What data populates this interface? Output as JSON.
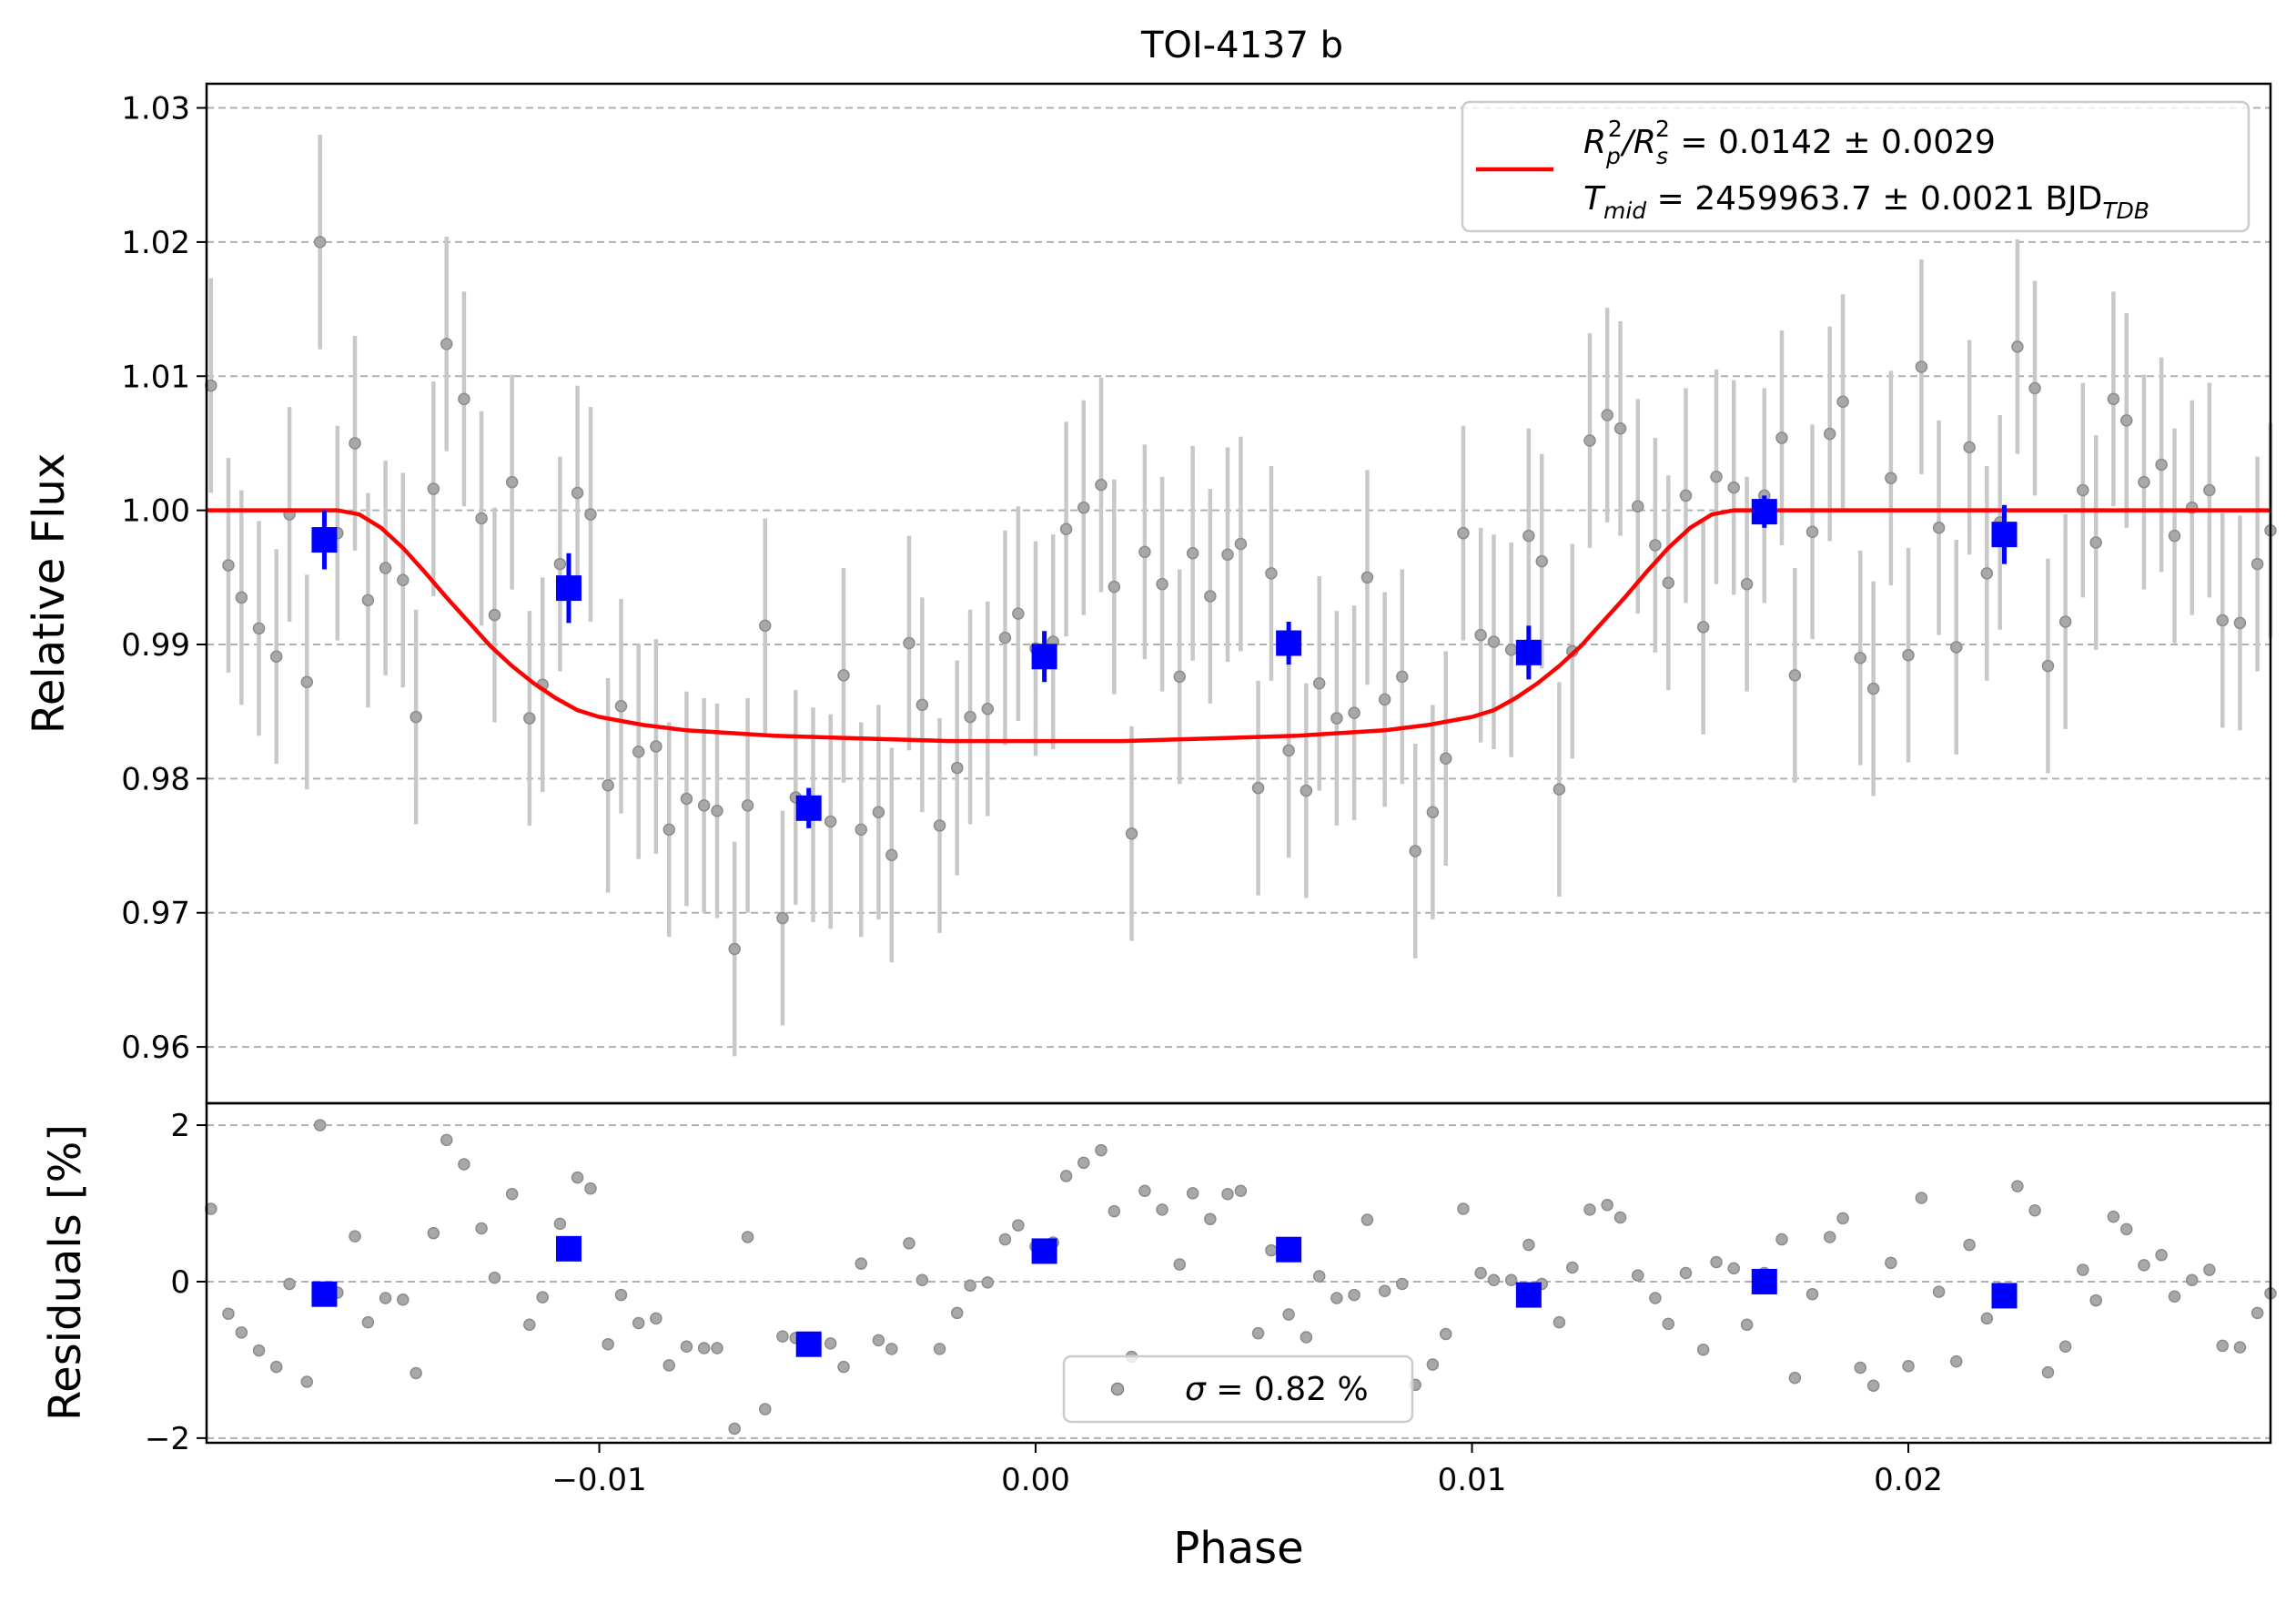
{
  "chart_data": [
    {
      "type": "scatter",
      "title": "TOI-4137 b",
      "xlabel": "",
      "ylabel": "Relative Flux",
      "xlim": [
        -0.019,
        0.0283
      ],
      "ylim": [
        0.9558,
        1.0318
      ],
      "grid": "horizontal-dashed",
      "legend_position": "top-right",
      "yticks": [
        "0.96",
        "0.97",
        "0.98",
        "0.99",
        "1.00",
        "1.01",
        "1.02",
        "1.03"
      ],
      "ytick_values": [
        0.96,
        0.97,
        0.98,
        0.99,
        1.0,
        1.01,
        1.02,
        1.03
      ],
      "legend": {
        "line1": {
          "p1": "R",
          "s1": "p",
          "e1": "2",
          "p2": "/R",
          "s2": "s",
          "e2": "2",
          "p3": " = 0.0142 ± 0.0029"
        },
        "line2": {
          "p1": "T",
          "s1": "mid",
          "p2": " = 2459963.7 ± 0.0021 BJD",
          "s2": "TDB"
        }
      },
      "colors": {
        "data": "#808080",
        "errorbar": "#c8c8c8",
        "binned": "#0000ff",
        "model": "#ff0000"
      },
      "series": [
        {
          "kind": "unbinned_data",
          "x": [
            -0.0189,
            -0.0185,
            -0.0182,
            -0.0178,
            -0.0174,
            -0.0171,
            -0.0167,
            -0.0164,
            -0.016,
            -0.0156,
            -0.0153,
            -0.0149,
            -0.0145,
            -0.0142,
            -0.0138,
            -0.0135,
            -0.0131,
            -0.0127,
            -0.0124,
            -0.012,
            -0.0116,
            -0.0113,
            -0.0109,
            -0.0105,
            -0.0102,
            -0.0098,
            -0.0095,
            -0.0091,
            -0.0087,
            -0.0084,
            -0.008,
            -0.0076,
            -0.0073,
            -0.0069,
            -0.0066,
            -0.0062,
            -0.0058,
            -0.0055,
            -0.0051,
            -0.0047,
            -0.0044,
            -0.004,
            -0.0036,
            -0.0033,
            -0.0029,
            -0.0026,
            -0.0022,
            -0.0018,
            -0.0015,
            -0.0011,
            -0.0007,
            -0.0004,
            0.0,
            0.0004,
            0.0007,
            0.0011,
            0.0015,
            0.0018,
            0.0022,
            0.0025,
            0.0029,
            0.0033,
            0.0036,
            0.004,
            0.0044,
            0.0047,
            0.0051,
            0.0054,
            0.0058,
            0.0062,
            0.0065,
            0.0069,
            0.0073,
            0.0076,
            0.008,
            0.0084,
            0.0087,
            0.0091,
            0.0094,
            0.0098,
            0.0102,
            0.0105,
            0.0109,
            0.0113,
            0.0116,
            0.012,
            0.0123,
            0.0127,
            0.0131,
            0.0134,
            0.0138,
            0.0142,
            0.0145,
            0.0149,
            0.0153,
            0.0156,
            0.016,
            0.0163,
            0.0167,
            0.0171,
            0.0174,
            0.0178,
            0.0182,
            0.0185,
            0.0189,
            0.0192,
            0.0196,
            0.02,
            0.0203,
            0.0207,
            0.0211,
            0.0214,
            0.0218,
            0.0221,
            0.0225,
            0.0229,
            0.0232,
            0.0236,
            0.024,
            0.0243,
            0.0247,
            0.025,
            0.0254,
            0.0258,
            0.0261,
            0.0265,
            0.0269,
            0.0272,
            0.0276,
            0.028,
            0.0283
          ],
          "y": [
            1.0093,
            0.9959,
            0.9935,
            0.9912,
            0.9891,
            0.9997,
            0.9872,
            1.02,
            0.9983,
            1.005,
            0.9933,
            0.9957,
            0.9948,
            0.9846,
            1.0016,
            1.0124,
            1.0083,
            0.9994,
            0.9922,
            1.0021,
            0.9845,
            0.987,
            0.996,
            1.0013,
            0.9997,
            0.9795,
            0.9854,
            0.982,
            0.9824,
            0.9762,
            0.9785,
            0.978,
            0.9776,
            0.9673,
            0.978,
            0.9914,
            0.9696,
            0.9786,
            0.9773,
            0.9768,
            0.9877,
            0.9762,
            0.9775,
            0.9743,
            0.9901,
            0.9855,
            0.9765,
            0.9808,
            0.9846,
            0.9852,
            0.9905,
            0.9923,
            0.9897,
            0.9902,
            0.9986,
            1.0002,
            1.0019,
            0.9943,
            0.9759,
            0.9969,
            0.9945,
            0.9876,
            0.9968,
            0.9936,
            0.9967,
            0.9975,
            0.9793,
            0.9953,
            0.9821,
            0.9791,
            0.9871,
            0.9845,
            0.9849,
            0.995,
            0.9859,
            0.9876,
            0.9746,
            0.9775,
            0.9815,
            0.9983,
            0.9907,
            0.9902,
            0.9896,
            0.9981,
            0.9962,
            0.9792,
            0.9895,
            1.0052,
            1.0071,
            1.0061,
            1.0003,
            0.9974,
            0.9946,
            1.0011,
            0.9913,
            1.0025,
            1.0017,
            0.9945,
            1.0011,
            1.0054,
            0.9877,
            0.9984,
            1.0057,
            1.0081,
            0.989,
            0.9867,
            1.0024,
            0.9892,
            1.0107,
            0.9987,
            0.9898,
            1.0047,
            0.9953,
            0.9991,
            1.0122,
            1.0091,
            0.9884,
            0.9917,
            1.0015,
            0.9976,
            1.0083,
            1.0067,
            1.0021,
            1.0034,
            0.9981,
            1.0002,
            1.0015,
            0.9918,
            0.9916,
            0.996,
            0.9985
          ],
          "yerr": 0.008
        },
        {
          "kind": "binned_data",
          "x": [
            -0.0163,
            -0.0107,
            -0.0052,
            0.0002,
            0.0058,
            0.0113,
            0.0167,
            0.0222
          ],
          "y": [
            0.9978,
            0.9942,
            0.9778,
            0.9891,
            0.9901,
            0.9894,
            0.9999,
            0.9982
          ],
          "yerr": [
            0.0022,
            0.0026,
            0.0015,
            0.0019,
            0.0016,
            0.002,
            0.0012,
            0.0022
          ]
        },
        {
          "kind": "model",
          "x": [
            -0.019,
            -0.016,
            -0.0155,
            -0.015,
            -0.0145,
            -0.014,
            -0.0135,
            -0.013,
            -0.0125,
            -0.012,
            -0.0115,
            -0.011,
            -0.0105,
            -0.01,
            -0.009,
            -0.008,
            -0.007,
            -0.006,
            -0.005,
            -0.004,
            -0.003,
            -0.002,
            -0.001,
            0.0,
            0.001,
            0.002,
            0.003,
            0.004,
            0.005,
            0.006,
            0.007,
            0.008,
            0.009,
            0.01,
            0.0105,
            0.011,
            0.0115,
            0.012,
            0.0125,
            0.013,
            0.0135,
            0.014,
            0.0145,
            0.015,
            0.0155,
            0.016,
            0.019,
            0.0283
          ],
          "y": [
            1.0,
            1.0,
            0.9997,
            0.9987,
            0.9972,
            0.9954,
            0.9935,
            0.9917,
            0.9899,
            0.9884,
            0.9871,
            0.986,
            0.9851,
            0.9846,
            0.984,
            0.9836,
            0.9834,
            0.9832,
            0.9831,
            0.983,
            0.9829,
            0.9828,
            0.9828,
            0.9828,
            0.9828,
            0.9828,
            0.9829,
            0.983,
            0.9831,
            0.9832,
            0.9834,
            0.9836,
            0.984,
            0.9846,
            0.9851,
            0.986,
            0.9871,
            0.9884,
            0.9899,
            0.9917,
            0.9935,
            0.9954,
            0.9972,
            0.9987,
            0.9997,
            1.0,
            1.0,
            1.0
          ]
        }
      ]
    },
    {
      "type": "scatter",
      "title": "",
      "xlabel": "Phase",
      "ylabel": "Residuals [%]",
      "xlim": [
        -0.019,
        0.0283
      ],
      "ylim": [
        -2.06,
        2.28
      ],
      "grid": "horizontal-dashed",
      "legend_position": "bottom-center",
      "yticks": [
        "−2",
        "0",
        "2"
      ],
      "ytick_values": [
        -2,
        0,
        2
      ],
      "xticks": [
        "−0.01",
        "0.00",
        "0.01",
        "0.02"
      ],
      "xtick_values": [
        -0.01,
        0.0,
        0.01,
        0.02
      ],
      "legend": {
        "sigma_symbol": "σ",
        "label": " = 0.82 %"
      },
      "series": [
        {
          "kind": "unbinned_residuals",
          "x": [
            -0.0189,
            -0.0185,
            -0.0182,
            -0.0178,
            -0.0174,
            -0.0171,
            -0.0167,
            -0.0164,
            -0.016,
            -0.0156,
            -0.0153,
            -0.0149,
            -0.0145,
            -0.0142,
            -0.0138,
            -0.0135,
            -0.0131,
            -0.0127,
            -0.0124,
            -0.012,
            -0.0116,
            -0.0113,
            -0.0109,
            -0.0105,
            -0.0102,
            -0.0098,
            -0.0095,
            -0.0091,
            -0.0087,
            -0.0084,
            -0.008,
            -0.0076,
            -0.0073,
            -0.0069,
            -0.0066,
            -0.0062,
            -0.0058,
            -0.0055,
            -0.0051,
            -0.0047,
            -0.0044,
            -0.004,
            -0.0036,
            -0.0033,
            -0.0029,
            -0.0026,
            -0.0022,
            -0.0018,
            -0.0015,
            -0.0011,
            -0.0007,
            -0.0004,
            0.0,
            0.0004,
            0.0007,
            0.0011,
            0.0015,
            0.0018,
            0.0022,
            0.0025,
            0.0029,
            0.0033,
            0.0036,
            0.004,
            0.0044,
            0.0047,
            0.0051,
            0.0054,
            0.0058,
            0.0062,
            0.0065,
            0.0069,
            0.0073,
            0.0076,
            0.008,
            0.0084,
            0.0087,
            0.0091,
            0.0094,
            0.0098,
            0.0102,
            0.0105,
            0.0109,
            0.0113,
            0.0116,
            0.012,
            0.0123,
            0.0127,
            0.0131,
            0.0134,
            0.0138,
            0.0142,
            0.0145,
            0.0149,
            0.0153,
            0.0156,
            0.016,
            0.0163,
            0.0167,
            0.0171,
            0.0174,
            0.0178,
            0.0182,
            0.0185,
            0.0189,
            0.0192,
            0.0196,
            0.02,
            0.0203,
            0.0207,
            0.0211,
            0.0214,
            0.0218,
            0.0221,
            0.0225,
            0.0229,
            0.0232,
            0.0236,
            0.024,
            0.0243,
            0.0247,
            0.025,
            0.0254,
            0.0258,
            0.0261,
            0.0265,
            0.0269,
            0.0272,
            0.0276,
            0.028,
            0.0283
          ],
          "y": [
            0.93,
            -0.41,
            -0.65,
            -0.88,
            -1.09,
            -0.03,
            -1.28,
            2.0,
            -0.14,
            0.58,
            -0.52,
            -0.21,
            -0.23,
            -1.17,
            0.62,
            1.81,
            1.5,
            0.68,
            0.05,
            1.12,
            -0.55,
            -0.2,
            0.74,
            1.33,
            1.19,
            -0.8,
            -0.17,
            -0.53,
            -0.47,
            -1.07,
            -0.83,
            -0.85,
            -0.85,
            -1.88,
            0.57,
            -1.63,
            -0.7,
            -0.72,
            -0.86,
            -0.79,
            -1.09,
            0.23,
            -0.75,
            -0.86,
            0.49,
            0.02,
            -0.86,
            -0.4,
            -0.05,
            -0.01,
            0.54,
            0.72,
            0.45,
            0.5,
            1.35,
            1.52,
            1.68,
            0.9,
            -0.96,
            1.16,
            0.92,
            0.22,
            1.13,
            0.8,
            1.12,
            1.16,
            -0.66,
            0.4,
            -0.42,
            -0.71,
            0.07,
            -0.21,
            -0.17,
            0.79,
            -0.12,
            -0.03,
            -1.32,
            -1.06,
            -0.67,
            0.93,
            0.11,
            0.02,
            0.02,
            0.47,
            -0.03,
            -0.52,
            0.18,
            0.92,
            0.98,
            0.82,
            0.08,
            -0.21,
            -0.54,
            0.11,
            -0.87,
            0.25,
            0.17,
            -0.55,
            0.11,
            0.54,
            -1.23,
            -0.16,
            0.57,
            0.81,
            -1.1,
            -1.33,
            0.24,
            -1.08,
            1.07,
            -0.13,
            -1.02,
            0.47,
            -0.47,
            -0.09,
            1.22,
            0.91,
            -1.16,
            -0.83,
            0.15,
            -0.24,
            0.83,
            0.67,
            0.21,
            0.34,
            -0.19,
            0.02,
            0.15,
            -0.82,
            -0.84,
            -0.4,
            -0.15
          ]
        },
        {
          "kind": "binned_residuals",
          "x": [
            -0.0163,
            -0.0107,
            -0.0052,
            0.0002,
            0.0058,
            0.0113,
            0.0167,
            0.0222
          ],
          "y": [
            -0.16,
            0.42,
            -0.8,
            0.39,
            0.41,
            -0.17,
            0.0,
            -0.18
          ]
        }
      ]
    }
  ]
}
